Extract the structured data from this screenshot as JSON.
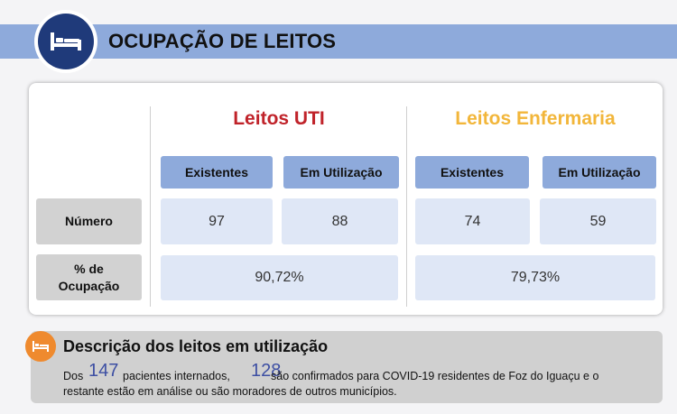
{
  "header": {
    "title": "OCUPAÇÃO DE LEITOS",
    "icon": "bed-icon"
  },
  "table": {
    "uti_title": "Leitos UTI",
    "enf_title": "Leitos Enfermaria",
    "col_existentes": "Existentes",
    "col_em_utilizacao": "Em Utilização",
    "row_numero": "Número",
    "row_ocupacao_line1": "% de",
    "row_ocupacao_line2": "Ocupação",
    "uti_existentes": "97",
    "uti_em_utilizacao": "88",
    "enf_existentes": "74",
    "enf_em_utilizacao": "59",
    "uti_ocupacao": "90,72%",
    "enf_ocupacao": "79,73%"
  },
  "description": {
    "icon": "bed-icon",
    "title": "Descrição dos leitos em utilização",
    "text_dos": "Dos",
    "num_internados": "147",
    "text_pacientes": "pacientes internados,",
    "num_confirmados": "128",
    "text_confirmados": "são confirmados para COVID-19 residentes de Foz do Iguaçu e o",
    "text_line2": "restante estão em análise ou são moradores de outros municípios."
  },
  "colors": {
    "header_bar": "#8eaadb",
    "badge_navy": "#1f3a7a",
    "uti_red": "#c0232a",
    "enf_yellow": "#f2b63a",
    "cell_blue": "#dfe7f6",
    "desc_orange": "#ef8a2e",
    "number_blue": "#3d4fa3"
  }
}
